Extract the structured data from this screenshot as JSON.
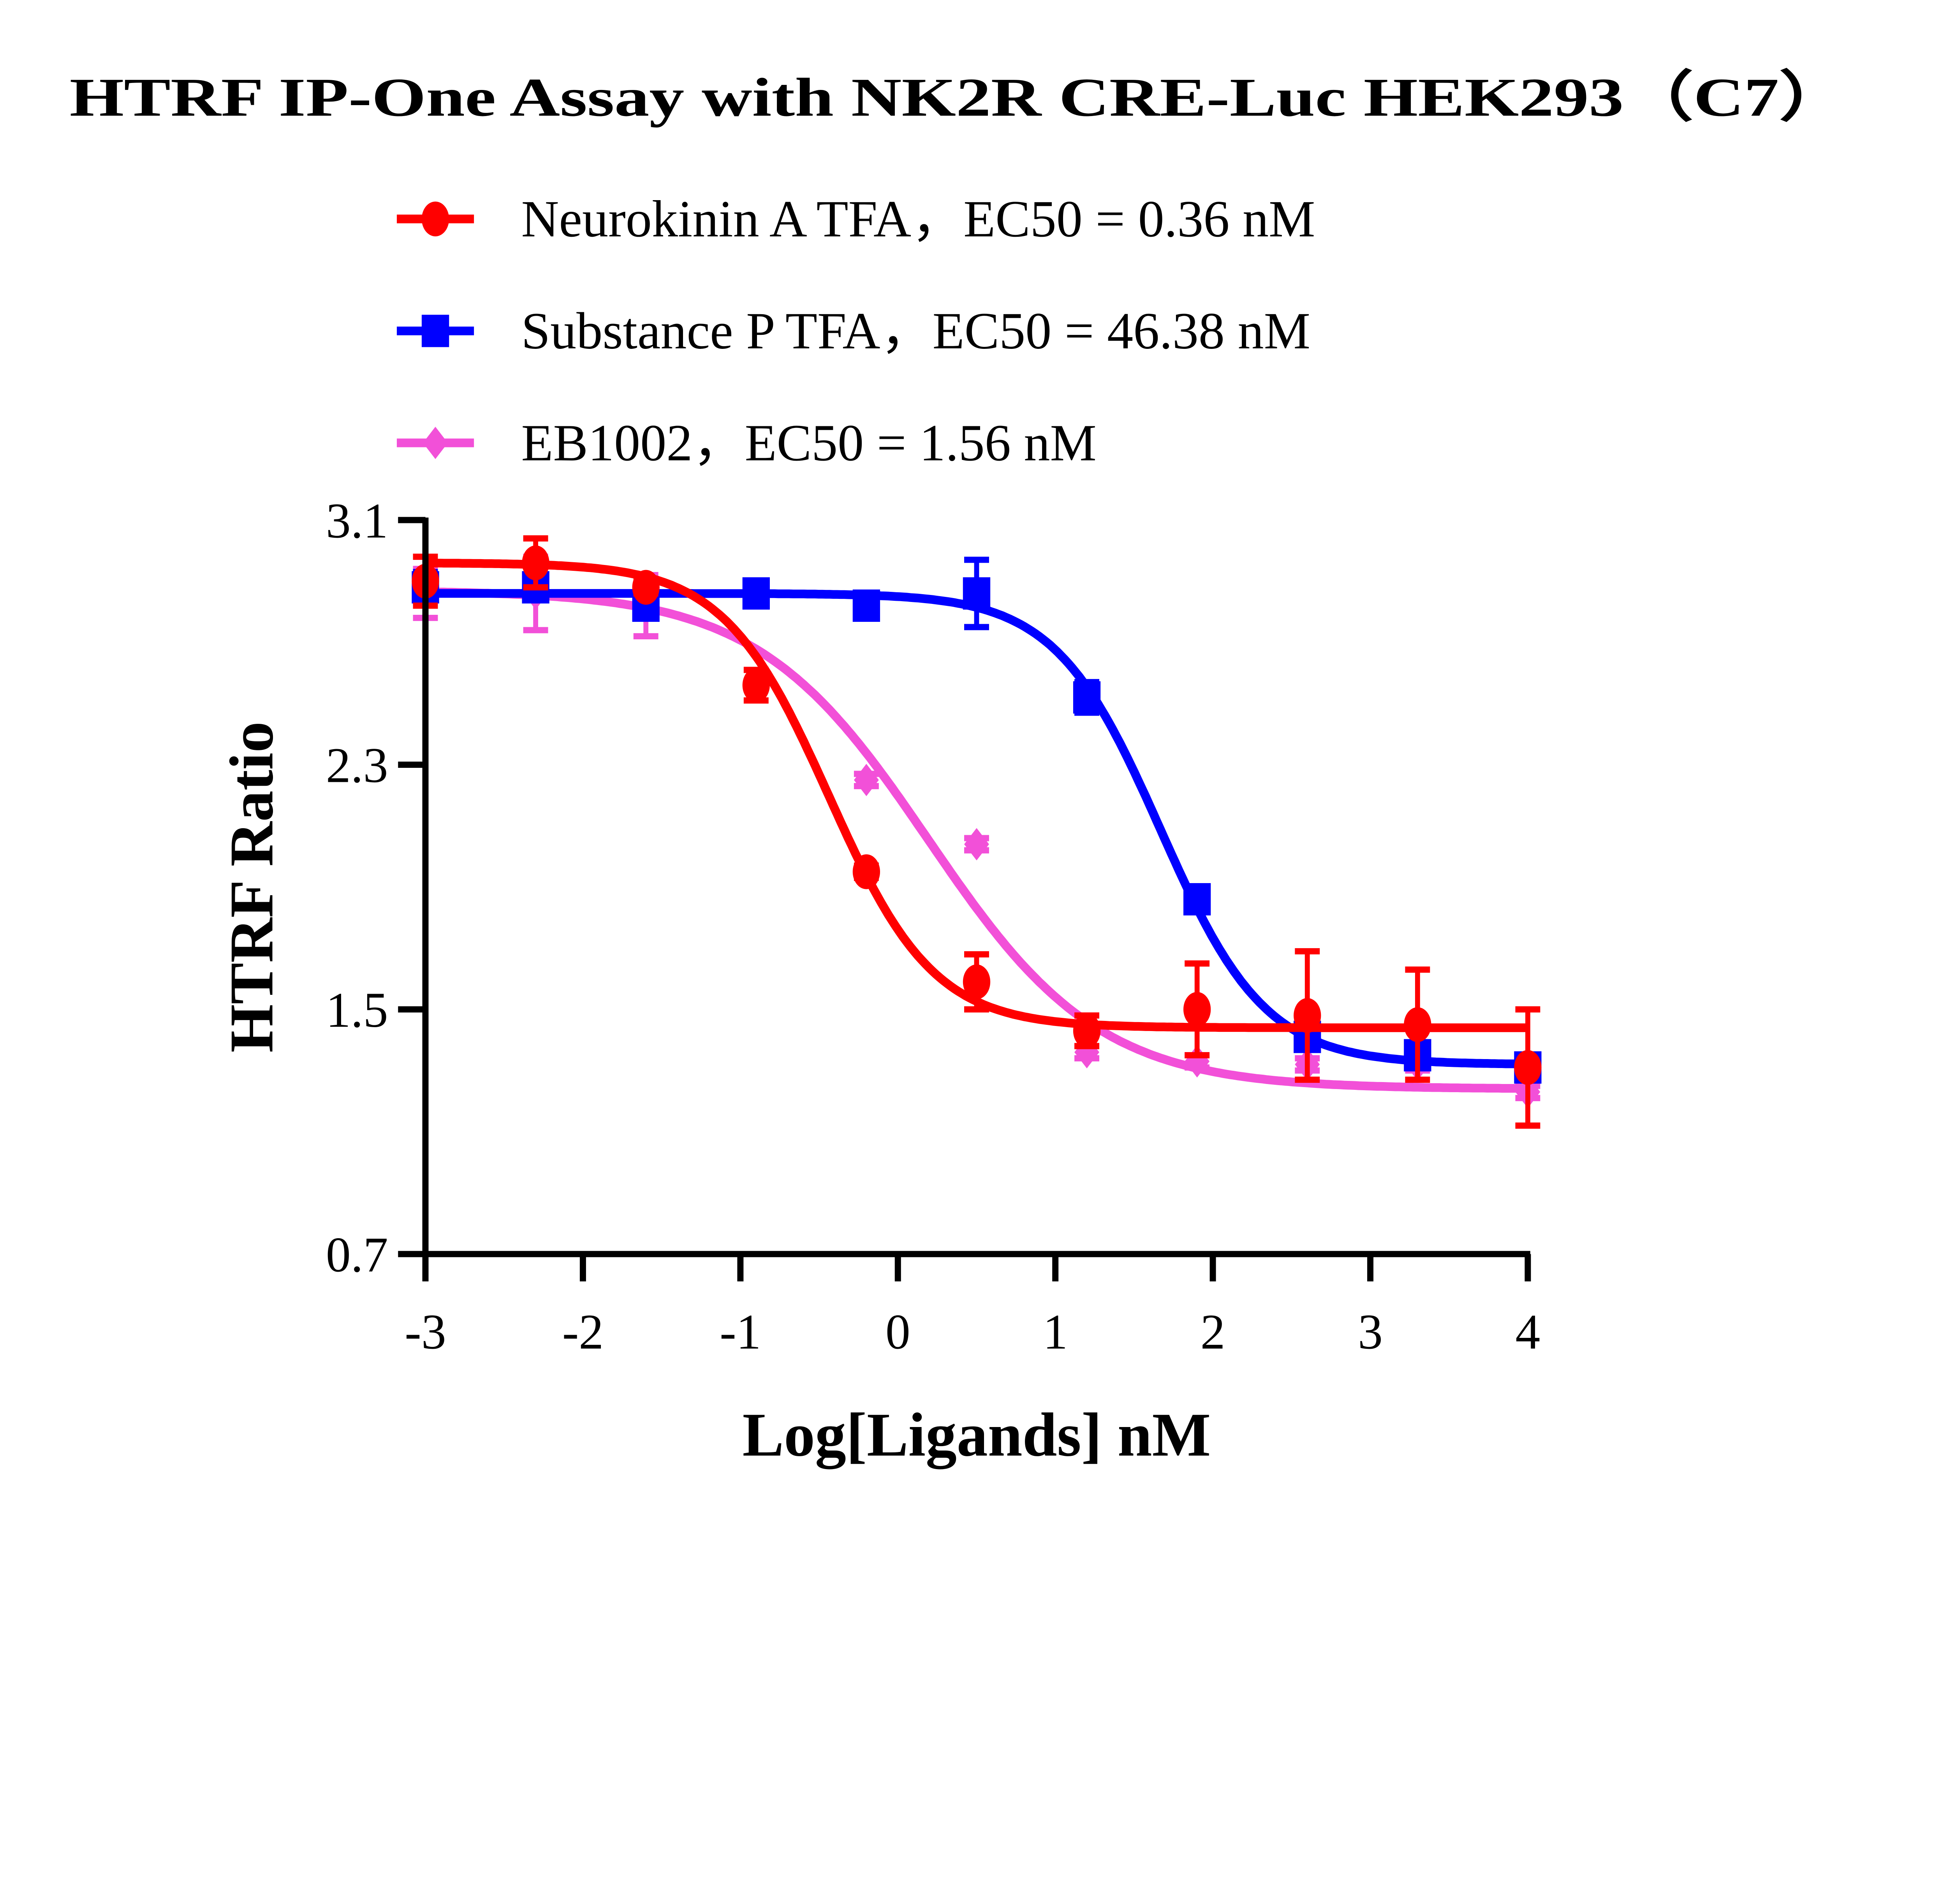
{
  "chart_data": {
    "type": "scatter",
    "title": "HTRF IP-One Assay with NK2R CRE-Luc HEK293（C7）",
    "xlabel": "Log[Ligands] nM",
    "ylabel": "HTRF Ratio",
    "xlim": [
      -3,
      4
    ],
    "ylim": [
      0.7,
      3.1
    ],
    "xticks": [
      "-3",
      "-2",
      "-1",
      "0",
      "1",
      "2",
      "3",
      "4"
    ],
    "yticks": [
      "0.7",
      "1.5",
      "2.3",
      "3.1"
    ],
    "grid": false,
    "legend_position": "top",
    "series": [
      {
        "name": "Neurokinin A TFA，EC50 = 0.36 nM",
        "color": "#ff0000",
        "marker": "circle",
        "x": [
          -3,
          -2.3,
          -1.6,
          -0.9,
          -0.2,
          0.5,
          1.2,
          1.9,
          2.6,
          3.3,
          4
        ],
        "y": [
          2.9,
          2.96,
          2.88,
          2.56,
          1.95,
          1.59,
          1.43,
          1.5,
          1.48,
          1.45,
          1.31
        ],
        "err": [
          0.08,
          0.08,
          0.02,
          0.05,
          0.02,
          0.09,
          0.05,
          0.15,
          0.21,
          0.18,
          0.19
        ],
        "fit": {
          "top": 2.96,
          "bottom": 1.44,
          "logEC50": -0.44,
          "hill": 1.3
        }
      },
      {
        "name": "Substance P TFA，EC50 = 46.38 nM",
        "color": "#0000ff",
        "marker": "square",
        "x": [
          -3,
          -2.3,
          -1.6,
          -0.9,
          -0.2,
          0.5,
          1.2,
          1.9,
          2.6,
          3.3,
          4
        ],
        "y": [
          2.88,
          2.88,
          2.82,
          2.86,
          2.82,
          2.86,
          2.52,
          1.86,
          1.41,
          1.35,
          1.31
        ],
        "err": [
          0.05,
          0.02,
          0.02,
          0.02,
          0.02,
          0.11,
          0.05,
          0.02,
          0.02,
          0.02,
          0.02
        ],
        "fit": {
          "top": 2.86,
          "bottom": 1.32,
          "logEC50": 1.666,
          "hill": 1.3
        }
      },
      {
        "name": "EB1002，EC50 = 1.56 nM",
        "color": "#f250d8",
        "marker": "diamond",
        "x": [
          -3,
          -2.3,
          -1.6,
          -0.2,
          0.5,
          1.2,
          1.9,
          2.6,
          3.3,
          4
        ],
        "y": [
          2.86,
          2.86,
          2.82,
          2.25,
          2.04,
          1.36,
          1.33,
          1.32,
          1.32,
          1.23
        ],
        "err": [
          0.08,
          0.12,
          0.1,
          0.02,
          0.02,
          0.02,
          0.02,
          0.02,
          0.02,
          0.02
        ],
        "fit": {
          "top": 2.87,
          "bottom": 1.24,
          "logEC50": 0.193,
          "hill": 0.8
        }
      }
    ]
  }
}
